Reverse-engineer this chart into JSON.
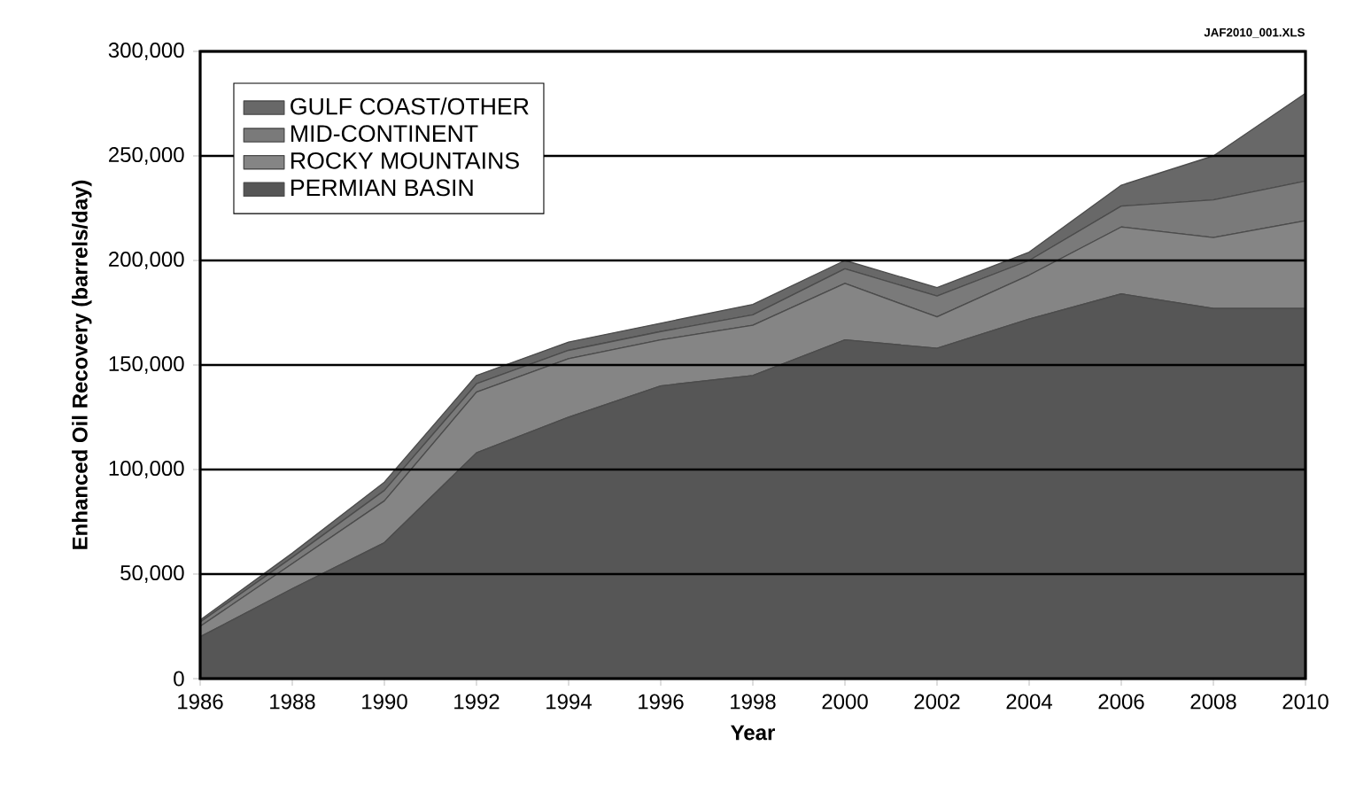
{
  "chart_data": {
    "type": "area",
    "stacked": true,
    "xlabel": "Year",
    "ylabel": "Enhanced Oil Recovery (barrels/day)",
    "annotations": [
      "JAF2010_001.XLS"
    ],
    "x": [
      1986,
      1988,
      1990,
      1992,
      1994,
      1996,
      1998,
      2000,
      2002,
      2004,
      2006,
      2008,
      2010
    ],
    "series": [
      {
        "name": "PERMIAN BASIN",
        "color": "#565656",
        "values": [
          20000,
          43000,
          65000,
          108000,
          125000,
          140000,
          145000,
          162000,
          158000,
          172000,
          184000,
          177000,
          177000
        ]
      },
      {
        "name": "ROCKY MOUNTAINS",
        "color": "#858585",
        "values": [
          5000,
          12000,
          20000,
          29000,
          28000,
          22000,
          24000,
          27000,
          15000,
          21000,
          32000,
          34000,
          42000
        ]
      },
      {
        "name": "MID-CONTINENT",
        "color": "#7a7a7a",
        "values": [
          2000,
          3000,
          5000,
          4000,
          4000,
          4000,
          5000,
          7000,
          10000,
          7000,
          10000,
          18000,
          19000
        ]
      },
      {
        "name": "GULF COAST/OTHER",
        "color": "#686868",
        "values": [
          1000,
          2000,
          4000,
          4000,
          4000,
          4000,
          5000,
          4000,
          4000,
          4000,
          10000,
          21000,
          42000
        ]
      }
    ],
    "xlim": [
      1986,
      2010
    ],
    "xticks": [
      1986,
      1988,
      1990,
      1992,
      1994,
      1996,
      1998,
      2000,
      2002,
      2004,
      2006,
      2008,
      2010
    ],
    "ylim": [
      0,
      300000
    ],
    "yticks": [
      0,
      {
        "value": 50000,
        "label": "50,000"
      },
      {
        "value": 100000,
        "label": "100,000"
      },
      {
        "value": 150000,
        "label": "150,000"
      },
      {
        "value": 200000,
        "label": "200,000"
      },
      {
        "value": 250000,
        "label": "250,000"
      },
      {
        "value": 300000,
        "label": "300,000"
      }
    ],
    "grid": "y",
    "legend": "top left"
  }
}
